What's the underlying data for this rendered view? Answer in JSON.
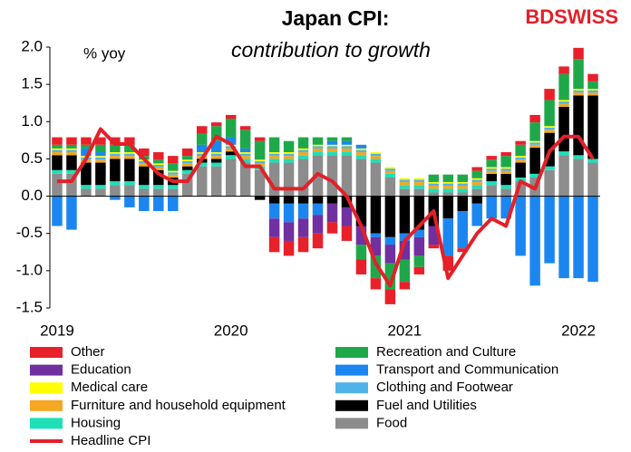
{
  "chart_data": {
    "type": "bar",
    "title": "Japan CPI:",
    "subtitle": "contribution to growth",
    "y_label": "% yoy",
    "logo": "BDSWISS",
    "categories": [
      "2019",
      null,
      null,
      null,
      null,
      null,
      null,
      null,
      null,
      null,
      null,
      null,
      "2020",
      null,
      null,
      null,
      null,
      null,
      null,
      null,
      null,
      null,
      null,
      null,
      "2021",
      null,
      null,
      null,
      null,
      null,
      null,
      null,
      null,
      null,
      null,
      null,
      "2022",
      null
    ],
    "ylim": [
      -1.5,
      2.0
    ],
    "yticks": [
      {
        "value": -1.5,
        "label": "-1.5"
      },
      {
        "value": -1.0,
        "label": "-1.0"
      },
      {
        "value": -0.5,
        "label": "-0.5"
      },
      {
        "value": 0,
        "label": "0.0"
      },
      {
        "value": 0.5,
        "label": "0.5"
      },
      {
        "value": 1.0,
        "label": "1.0"
      },
      {
        "value": 1.5,
        "label": "1.5"
      },
      {
        "value": 2.0,
        "label": "2.0"
      }
    ],
    "series": [
      {
        "name": "Other",
        "color": "#e8202a",
        "values": [
          0.1,
          0.1,
          0.1,
          0.1,
          0.1,
          0.1,
          0.1,
          0.1,
          0.1,
          0.1,
          0.1,
          0.05,
          0.05,
          0.05,
          0.05,
          -0.2,
          -0.2,
          -0.2,
          -0.2,
          -0.15,
          -0.2,
          -0.2,
          -0.15,
          -0.2,
          -0.1,
          -0.1,
          -0.05,
          -0.2,
          -0.05,
          0.05,
          0.05,
          0.05,
          0.05,
          0.1,
          0.15,
          0.1,
          0.15,
          0.1
        ]
      },
      {
        "name": "Recreation and Culture",
        "color": "#1fa84a",
        "values": [
          0.05,
          0.05,
          0.05,
          0.1,
          0.1,
          0.1,
          0.05,
          0.05,
          0.1,
          0.05,
          0.15,
          0.2,
          0.25,
          0.25,
          0.25,
          0.2,
          0.15,
          0.15,
          0.1,
          0.05,
          0.05,
          -0.2,
          -0.3,
          -0.35,
          -0.3,
          -0.15,
          0.1,
          0.1,
          0.1,
          0.1,
          0.1,
          0.15,
          0.15,
          0.25,
          0.35,
          0.35,
          0.4,
          0.1
        ]
      },
      {
        "name": "Education",
        "color": "#7030a0",
        "values": [
          0,
          0,
          0,
          0,
          0,
          0,
          0,
          0,
          0,
          0,
          0,
          0,
          0,
          0,
          0,
          -0.25,
          -0.25,
          -0.25,
          -0.25,
          -0.25,
          -0.25,
          -0.25,
          -0.25,
          -0.25,
          -0.25,
          -0.25,
          -0.25,
          0,
          0,
          0,
          0,
          0,
          0,
          0,
          0,
          0,
          0,
          0
        ]
      },
      {
        "name": "Transport and Communication",
        "color": "#1c86f0",
        "values": [
          -0.4,
          -0.45,
          0.1,
          0.05,
          -0.05,
          -0.15,
          -0.2,
          -0.2,
          -0.2,
          0,
          0.1,
          0.15,
          0.1,
          0.05,
          0,
          -0.2,
          -0.25,
          -0.2,
          -0.15,
          0.05,
          0.05,
          0.05,
          -0.05,
          -0.1,
          -0.1,
          -0.1,
          0,
          -0.5,
          -0.5,
          -0.3,
          -0.3,
          -0.3,
          -0.8,
          -1.2,
          -0.9,
          -1.1,
          -1.1,
          -1.15
        ]
      },
      {
        "name": "Medical care",
        "color": "#ffff00",
        "values": [
          0.02,
          0.02,
          0.02,
          0.02,
          0.02,
          0.02,
          0.02,
          0.02,
          0.02,
          0.02,
          0.02,
          0.02,
          0.02,
          0.02,
          0.02,
          0.02,
          0.02,
          0.02,
          0.02,
          0.02,
          0.02,
          0.02,
          0.02,
          0.02,
          0.02,
          0.02,
          0.02,
          0.02,
          0.02,
          0.02,
          0.02,
          0.02,
          0.02,
          0.02,
          0.02,
          0.02,
          0.02,
          0.02
        ]
      },
      {
        "name": "Clothing and Footwear",
        "color": "#4fb3e8",
        "values": [
          0.03,
          0.03,
          0.03,
          0.03,
          0.03,
          0.03,
          0.03,
          0.03,
          0.03,
          0.03,
          0.03,
          0.03,
          0.03,
          0.03,
          0.03,
          0.03,
          0.03,
          0.03,
          0.03,
          0.03,
          0.03,
          0.03,
          0.03,
          0.03,
          0.03,
          0.03,
          0.03,
          0.03,
          0.03,
          0.03,
          0.03,
          0.03,
          0.03,
          0.03,
          0.03,
          0.03,
          0.03,
          0.03
        ]
      },
      {
        "name": "Furniture and household equipment",
        "color": "#f5a623",
        "values": [
          0.04,
          0.04,
          0.04,
          0.04,
          0.04,
          0.04,
          0.04,
          0.04,
          0.04,
          0.04,
          0.04,
          0.04,
          0.04,
          0.04,
          0.04,
          0.04,
          0.04,
          0.04,
          0.04,
          0.04,
          0.04,
          0.04,
          0.04,
          0.04,
          0.04,
          0.04,
          0.04,
          0.04,
          0.04,
          0.04,
          0.04,
          0.04,
          0.04,
          0.04,
          0.04,
          0.04,
          0.04,
          0.04
        ]
      },
      {
        "name": "Fuel and Utilities",
        "color": "#000000",
        "values": [
          0.2,
          0.2,
          0.3,
          0.3,
          0.3,
          0.3,
          0.25,
          0.2,
          0.1,
          0.05,
          0.05,
          0.05,
          0.05,
          0,
          -0.05,
          -0.1,
          -0.1,
          -0.1,
          -0.1,
          -0.1,
          -0.15,
          -0.4,
          -0.5,
          -0.55,
          -0.5,
          -0.45,
          -0.4,
          -0.3,
          -0.2,
          -0.1,
          0.1,
          0.15,
          0.2,
          0.35,
          0.45,
          0.6,
          0.8,
          0.85
        ]
      },
      {
        "name": "Housing",
        "color": "#1de0b8",
        "values": [
          0.05,
          0.05,
          0.05,
          0.05,
          0.05,
          0.05,
          0.05,
          0.05,
          0.05,
          0.05,
          0.05,
          0.05,
          0.05,
          0.05,
          0.05,
          0.05,
          0.05,
          0.05,
          0.05,
          0.05,
          0.05,
          0.05,
          0.05,
          0.05,
          0.05,
          0.05,
          0.05,
          0.05,
          0.05,
          0.05,
          0.05,
          0.05,
          0.05,
          0.05,
          0.05,
          0.05,
          0.05,
          0.05
        ]
      },
      {
        "name": "Food",
        "color": "#8c8c8c",
        "values": [
          0.3,
          0.3,
          0.1,
          0.1,
          0.15,
          0.15,
          0.1,
          0.1,
          0.1,
          0.3,
          0.4,
          0.4,
          0.5,
          0.45,
          0.35,
          0.45,
          0.45,
          0.5,
          0.55,
          0.55,
          0.55,
          0.5,
          0.45,
          0.25,
          0.1,
          0.1,
          0.05,
          0.05,
          0.05,
          0.1,
          0.15,
          0.1,
          0.2,
          0.25,
          0.35,
          0.55,
          0.5,
          0.45
        ]
      }
    ],
    "line": {
      "name": "Headline CPI",
      "color": "#e32028",
      "values": [
        0.2,
        0.2,
        0.5,
        0.9,
        0.7,
        0.7,
        0.5,
        0.3,
        0.2,
        0.2,
        0.5,
        0.8,
        0.7,
        0.4,
        0.4,
        0.1,
        0.1,
        0.1,
        0.3,
        0.2,
        0,
        -0.4,
        -0.9,
        -1.2,
        -0.6,
        -0.4,
        -0.2,
        -1.1,
        -0.8,
        -0.5,
        -0.3,
        -0.4,
        0.2,
        0.1,
        0.6,
        0.8,
        0.8,
        0.5
      ]
    }
  }
}
